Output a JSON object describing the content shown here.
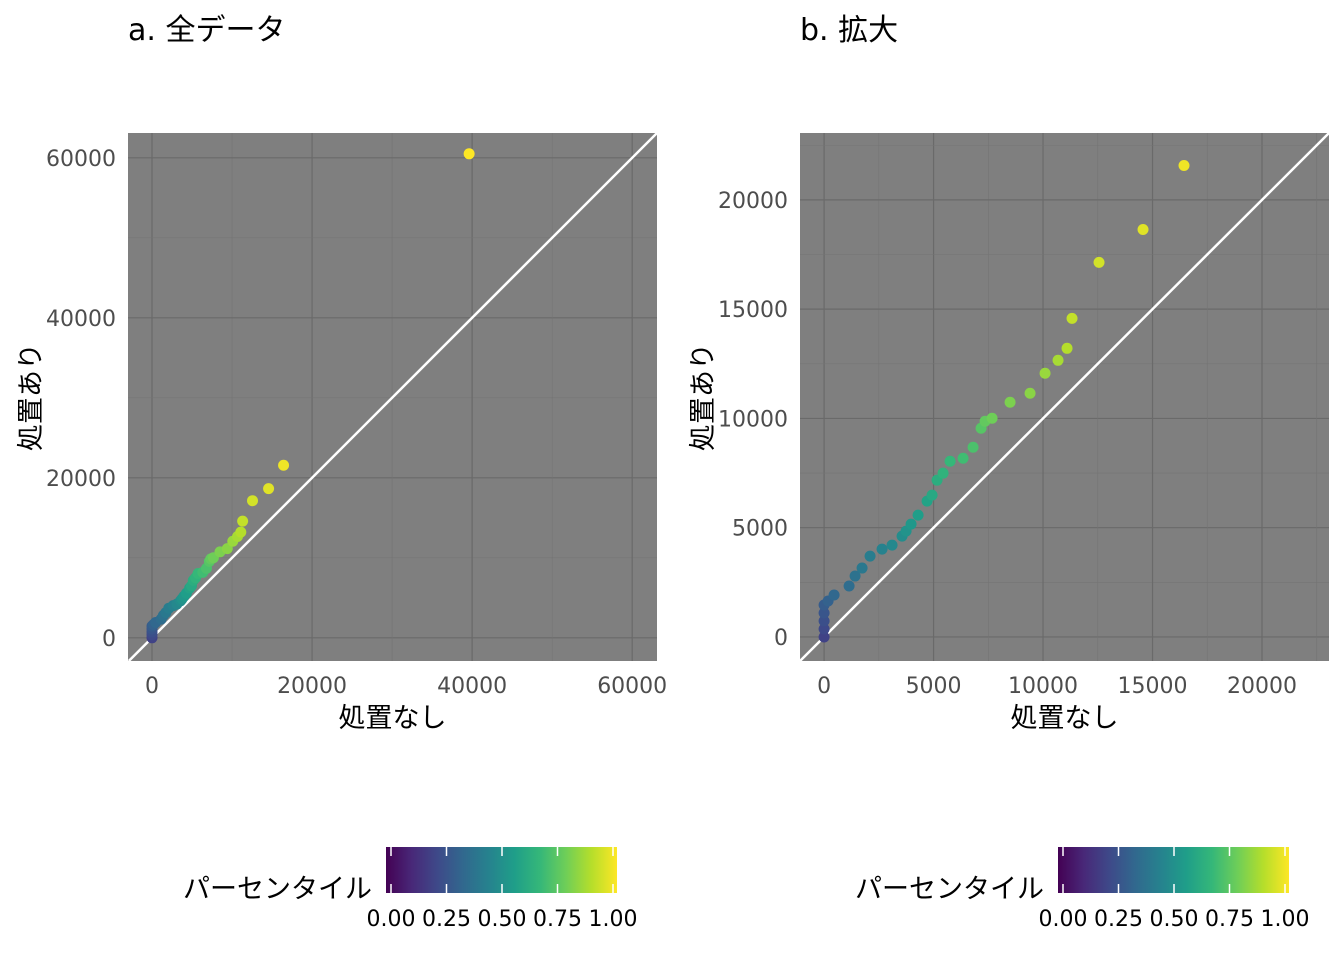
{
  "chart_data": [
    {
      "type": "scatter",
      "title": "a. 全データ",
      "xlabel": "処置なし",
      "ylabel": "処置あり",
      "xlim": [
        -3000,
        63100
      ],
      "ylim": [
        -2900,
        63100
      ],
      "xticks": [
        0,
        20000,
        40000,
        60000
      ],
      "yticks": [
        0,
        20000,
        40000,
        60000
      ],
      "reference_line": "y=x",
      "grid": true
    },
    {
      "type": "scatter",
      "title": "b. 拡大",
      "xlabel": "処置なし",
      "ylabel": "処置あり",
      "xlim": [
        -1100,
        23060
      ],
      "ylim": [
        -1100,
        23060
      ],
      "xticks": [
        0,
        5000,
        10000,
        15000,
        20000
      ],
      "yticks": [
        0,
        5000,
        10000,
        15000,
        20000
      ],
      "reference_line": "y=x",
      "grid": true
    }
  ],
  "points": [
    [
      0,
      0
    ],
    [
      0,
      366
    ],
    [
      0,
      731
    ],
    [
      0,
      1097
    ],
    [
      0,
      1462
    ],
    [
      183,
      1645
    ],
    [
      457,
      1919
    ],
    [
      1142,
      2330
    ],
    [
      1416,
      2787
    ],
    [
      1735,
      3153
    ],
    [
      2100,
      3701
    ],
    [
      2648,
      4021
    ],
    [
      3105,
      4204
    ],
    [
      3562,
      4615
    ],
    [
      3745,
      4843
    ],
    [
      3973,
      5163
    ],
    [
      4293,
      5574
    ],
    [
      4704,
      6214
    ],
    [
      4932,
      6489
    ],
    [
      5160,
      7174
    ],
    [
      5434,
      7494
    ],
    [
      5754,
      8042
    ],
    [
      6347,
      8179
    ],
    [
      6804,
      8682
    ],
    [
      7170,
      9550
    ],
    [
      7352,
      9870
    ],
    [
      7672,
      10008
    ],
    [
      8494,
      10739
    ],
    [
      9407,
      11151
    ],
    [
      10092,
      12065
    ],
    [
      10685,
      12659
    ],
    [
      11096,
      13208
    ],
    [
      11324,
      14579
    ],
    [
      12557,
      17138
    ],
    [
      14566,
      18646
    ],
    [
      16438,
      21571
    ],
    [
      39625,
      60500
    ]
  ],
  "percentile_range": [
    0.2,
    1.0
  ],
  "legend": {
    "title": "パーセンタイル",
    "ticks": [
      "0.00",
      "0.25",
      "0.50",
      "0.75",
      "1.00"
    ]
  },
  "colors": {
    "panel": "#7f7f7f",
    "grid_major": "#6a6a6a",
    "grid_minor": "#747474",
    "line": "#ffffff"
  }
}
